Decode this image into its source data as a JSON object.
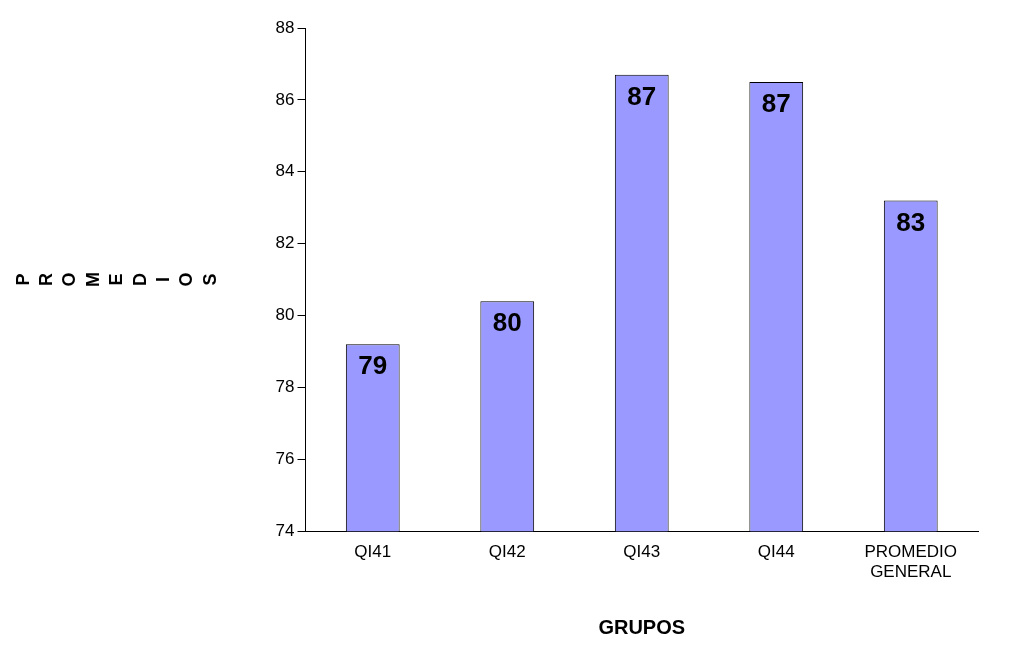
{
  "chart_data": {
    "type": "bar",
    "xlabel": "GRUPOS",
    "ylabel": "PROMEDIOS",
    "categories": [
      "QI41",
      "QI42",
      "QI43",
      "QI44",
      "PROMEDIO GENERAL"
    ],
    "values": [
      79.2,
      80.4,
      86.7,
      86.5,
      83.2
    ],
    "value_labels": [
      "79",
      "80",
      "87",
      "87",
      "83"
    ],
    "color": "#9999ff",
    "ylim": [
      74,
      88
    ],
    "yticks": [
      74,
      76,
      78,
      80,
      82,
      84,
      86,
      88
    ],
    "grid": false,
    "legend": false
  }
}
